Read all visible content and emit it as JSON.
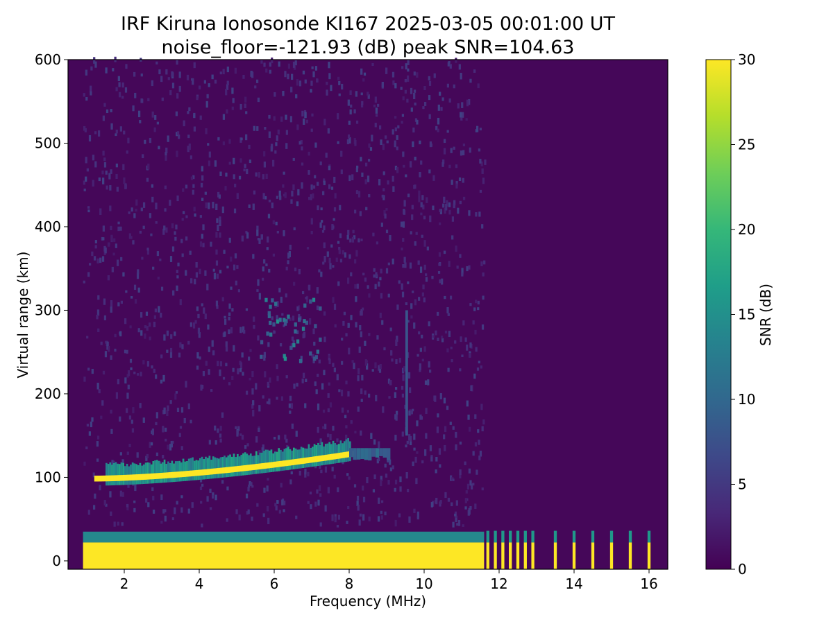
{
  "chart_data": {
    "type": "heatmap",
    "title": "IRF Kiruna Ionosonde KI167 2025-03-05 00:01:00  UT",
    "subtitle": "noise_floor=-121.93 (dB) peak SNR=104.63",
    "xlabel": "Frequency (MHz)",
    "ylabel": "Virtual range (km)",
    "xlim": [
      0.5,
      16.5
    ],
    "ylim": [
      -10,
      600
    ],
    "x_ticks": [
      2,
      4,
      6,
      8,
      10,
      12,
      14,
      16
    ],
    "y_ticks": [
      0,
      100,
      200,
      300,
      400,
      500,
      600
    ],
    "grid": false,
    "colorbar": {
      "label": "SNR (dB)",
      "range": [
        0,
        30
      ],
      "ticks": [
        0,
        5,
        10,
        15,
        20,
        25,
        30
      ],
      "colormap": "viridis",
      "colors": [
        "#440154",
        "#482878",
        "#3e4989",
        "#31688e",
        "#26828e",
        "#1f9e89",
        "#35b779",
        "#6ece58",
        "#b5de2b",
        "#fde725"
      ]
    },
    "background_snr_db": 0.5,
    "data_start_freq_mhz": 0.9,
    "features": [
      {
        "name": "ground-clutter",
        "freq_mhz": [
          0.9,
          11.6
        ],
        "range_km": [
          -10,
          35
        ],
        "snr_db": 30
      },
      {
        "name": "e-layer-trace",
        "freq_mhz": [
          1.2,
          8.1
        ],
        "range_km_start": 98,
        "range_km_end": 128,
        "snr_db": 30
      },
      {
        "name": "e-layer-halo",
        "freq_mhz": [
          1.5,
          8.0
        ],
        "range_km": [
          92,
          140
        ],
        "snr_db": 12
      },
      {
        "name": "oblique-patch",
        "freq_mhz": [
          8.0,
          9.0
        ],
        "range_km": [
          120,
          135
        ],
        "snr_db": 8
      },
      {
        "name": "spread-echo",
        "freq_mhz": [
          5.5,
          7.2
        ],
        "range_km": [
          235,
          310
        ],
        "snr_db": 14
      },
      {
        "name": "interference-line",
        "freq_mhz": 9.5,
        "range_km": [
          150,
          300
        ],
        "snr_db": 8
      }
    ],
    "sparse_columns_mhz": [
      11.7,
      11.9,
      12.1,
      12.3,
      12.5,
      12.7,
      12.9,
      13.5,
      14.0,
      14.5,
      15.0,
      15.5,
      16.0
    ]
  }
}
